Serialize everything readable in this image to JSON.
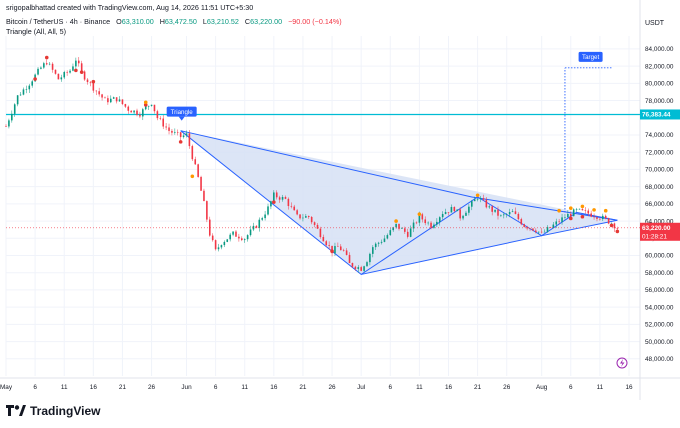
{
  "header": {
    "author_line": "srigopalbhattad created with TradingView.com, Aug 14, 2026 11:51 UTC+5:30",
    "symbol": "Bitcoin / TetherUS · 4h · Binance",
    "ohlc": {
      "o_label": "O",
      "o": "63,310.00",
      "h_label": "H",
      "h": "63,472.50",
      "l_label": "L",
      "l": "63,210.52",
      "c_label": "C",
      "c": "63,220.00",
      "change": "−90.00 (−0.14%)"
    },
    "indicator": "Triangle (All, All, 5)"
  },
  "currency": "USDT",
  "brand": "TradingView",
  "colors": {
    "up": "#089981",
    "down": "#f23645",
    "pattern_line": "#2962ff",
    "pattern_fill": "#d6e0f5",
    "hline": "#00bcd4",
    "label_bg": "#2962ff",
    "last_price_bg": "#f23645"
  },
  "chart_data": {
    "type": "candlestick",
    "ylim": [
      46000,
      85500
    ],
    "y_ticks": [
      {
        "v": 84000,
        "label": "84,000.00"
      },
      {
        "v": 82000,
        "label": "82,000.00"
      },
      {
        "v": 80000,
        "label": "80,000.00"
      },
      {
        "v": 78000,
        "label": "78,000.00"
      },
      {
        "v": 74000,
        "label": "74,000.00"
      },
      {
        "v": 72000,
        "label": "72,000.00"
      },
      {
        "v": 70000,
        "label": "70,000.00"
      },
      {
        "v": 68000,
        "label": "68,000.00"
      },
      {
        "v": 66000,
        "label": "66,000.00"
      },
      {
        "v": 64000,
        "label": "64,000.00"
      },
      {
        "v": 62000,
        "label": "62,000.00"
      },
      {
        "v": 60000,
        "label": "60,000.00"
      },
      {
        "v": 58000,
        "label": "58,000.00"
      },
      {
        "v": 56000,
        "label": "56,000.00"
      },
      {
        "v": 54000,
        "label": "54,000.00"
      },
      {
        "v": 52000,
        "label": "52,000.00"
      },
      {
        "v": 50000,
        "label": "50,000.00"
      },
      {
        "v": 48000,
        "label": "48,000.00"
      }
    ],
    "x_range_days": [
      0,
      107
    ],
    "x_ticks": [
      {
        "d": 0,
        "label": "May"
      },
      {
        "d": 5,
        "label": "6"
      },
      {
        "d": 10,
        "label": "11"
      },
      {
        "d": 15,
        "label": "16"
      },
      {
        "d": 20,
        "label": "21"
      },
      {
        "d": 25,
        "label": "26"
      },
      {
        "d": 31,
        "label": "Jun"
      },
      {
        "d": 36,
        "label": "6"
      },
      {
        "d": 41,
        "label": "11"
      },
      {
        "d": 46,
        "label": "16"
      },
      {
        "d": 51,
        "label": "21"
      },
      {
        "d": 56,
        "label": "26"
      },
      {
        "d": 61,
        "label": "Jul"
      },
      {
        "d": 66,
        "label": "6"
      },
      {
        "d": 71,
        "label": "11"
      },
      {
        "d": 76,
        "label": "16"
      },
      {
        "d": 81,
        "label": "21"
      },
      {
        "d": 86,
        "label": "26"
      },
      {
        "d": 92,
        "label": "Aug"
      },
      {
        "d": 97,
        "label": "6"
      },
      {
        "d": 102,
        "label": "11"
      },
      {
        "d": 107,
        "label": "16"
      }
    ],
    "price_path": [
      [
        0,
        75000
      ],
      [
        2,
        78500
      ],
      [
        4,
        80000
      ],
      [
        6,
        81800
      ],
      [
        7,
        82500
      ],
      [
        9,
        80500
      ],
      [
        11,
        81500
      ],
      [
        12,
        82800
      ],
      [
        13,
        81200
      ],
      [
        15,
        79500
      ],
      [
        17,
        78000
      ],
      [
        19,
        78200
      ],
      [
        21,
        77000
      ],
      [
        23,
        76500
      ],
      [
        25,
        77800
      ],
      [
        26,
        76000
      ],
      [
        28,
        74500
      ],
      [
        30,
        73800
      ],
      [
        31,
        74000
      ],
      [
        33,
        69000
      ],
      [
        34,
        66000
      ],
      [
        35,
        62500
      ],
      [
        36,
        60500
      ],
      [
        37,
        61500
      ],
      [
        39,
        62500
      ],
      [
        41,
        62000
      ],
      [
        43,
        63500
      ],
      [
        45,
        65500
      ],
      [
        46,
        67000
      ],
      [
        48,
        66500
      ],
      [
        50,
        64500
      ],
      [
        52,
        64500
      ],
      [
        54,
        62500
      ],
      [
        56,
        60500
      ],
      [
        57,
        61000
      ],
      [
        58,
        60500
      ],
      [
        59,
        59000
      ],
      [
        61,
        58500
      ],
      [
        62,
        59500
      ],
      [
        63,
        61000
      ],
      [
        65,
        62000
      ],
      [
        67,
        63500
      ],
      [
        69,
        62500
      ],
      [
        71,
        64500
      ],
      [
        73,
        63500
      ],
      [
        75,
        65000
      ],
      [
        77,
        65500
      ],
      [
        78,
        64500
      ],
      [
        80,
        66000
      ],
      [
        81,
        66800
      ],
      [
        83,
        65500
      ],
      [
        85,
        64500
      ],
      [
        87,
        65000
      ],
      [
        89,
        63500
      ],
      [
        91,
        63000
      ],
      [
        92,
        62500
      ],
      [
        94,
        63500
      ],
      [
        96,
        64500
      ],
      [
        98,
        65200
      ],
      [
        100,
        64900
      ],
      [
        102,
        64500
      ],
      [
        104,
        63800
      ],
      [
        105,
        63220
      ]
    ],
    "sell_signals": [
      [
        5,
        80500
      ],
      [
        7,
        83000
      ],
      [
        12,
        81500
      ],
      [
        13,
        81300
      ],
      [
        15,
        80200
      ],
      [
        24,
        77500
      ],
      [
        30,
        73200
      ],
      [
        46,
        66200
      ],
      [
        56,
        60500
      ],
      [
        97,
        64300
      ],
      [
        99,
        64500
      ],
      [
        104,
        63500
      ],
      [
        105,
        62800
      ]
    ],
    "buy_signals": [
      [
        24,
        77800
      ],
      [
        32,
        69200
      ],
      [
        67,
        64000
      ],
      [
        71,
        64800
      ],
      [
        81,
        67000
      ],
      [
        95,
        65200
      ],
      [
        97,
        65500
      ],
      [
        99,
        65700
      ],
      [
        101,
        65300
      ],
      [
        103,
        65200
      ]
    ],
    "triangle": {
      "label": "Triangle",
      "apex_top": [
        30,
        74500
      ],
      "apex_low": [
        61,
        57800
      ],
      "end": [
        105,
        64100
      ],
      "upper_line": [
        [
          30,
          74500
        ],
        [
          80,
          66800
        ],
        [
          105,
          64100
        ]
      ],
      "lower_line": [
        [
          61,
          57800
        ],
        [
          92,
          62300
        ],
        [
          105,
          64100
        ]
      ],
      "zigzag": [
        [
          30,
          74500
        ],
        [
          61,
          57800
        ],
        [
          81,
          66800
        ],
        [
          92,
          62300
        ],
        [
          98,
          65000
        ],
        [
          105,
          64100
        ]
      ]
    },
    "horizontal_line": {
      "value": 76383.44,
      "label": "76,383.44"
    },
    "target": {
      "label": "Target",
      "value": 81800,
      "from_day": 96,
      "from_value": 65000
    },
    "last_price": {
      "label": "63,220.00",
      "timer": "01:28:21",
      "value": 63220
    }
  }
}
